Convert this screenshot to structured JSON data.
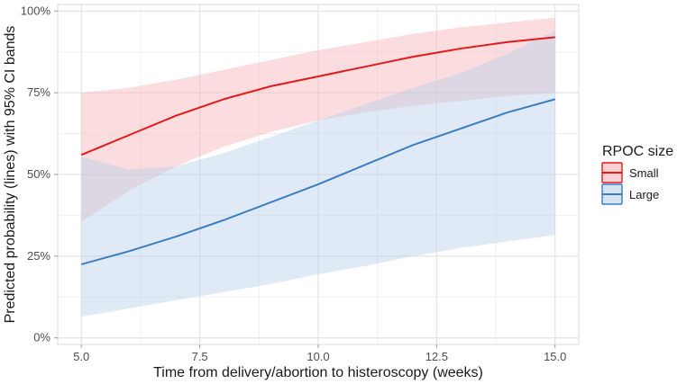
{
  "chart_data": {
    "type": "line",
    "title": "",
    "xlabel": "Time from delivery/abortion to histeroscopy (weeks)",
    "ylabel": "Predicted probability (lines) with 95% CI bands",
    "xlim": [
      4.5,
      15.5
    ],
    "ylim": [
      -0.02,
      1.02
    ],
    "x_ticks": [
      5.0,
      7.5,
      10.0,
      12.5,
      15.0
    ],
    "x_tick_labels": [
      "5.0",
      "7.5",
      "10.0",
      "12.5",
      "15.0"
    ],
    "y_ticks": [
      0,
      0.25,
      0.5,
      0.75,
      1.0
    ],
    "y_tick_labels": [
      "0%",
      "25%",
      "50%",
      "75%",
      "100%"
    ],
    "grid": true,
    "legend": {
      "title": "RPOC size",
      "position": "right"
    },
    "x": [
      5,
      6,
      7,
      8,
      9,
      10,
      11,
      12,
      13,
      14,
      15
    ],
    "series": [
      {
        "name": "Small",
        "color": "#e31a1c",
        "band_color": "#f8b3b8",
        "values": [
          0.56,
          0.62,
          0.68,
          0.73,
          0.77,
          0.8,
          0.83,
          0.86,
          0.885,
          0.905,
          0.92
        ],
        "lower": [
          0.355,
          0.45,
          0.525,
          0.585,
          0.63,
          0.665,
          0.69,
          0.71,
          0.725,
          0.74,
          0.75
        ],
        "upper": [
          0.75,
          0.765,
          0.79,
          0.82,
          0.85,
          0.88,
          0.905,
          0.93,
          0.95,
          0.965,
          0.98
        ]
      },
      {
        "name": "Large",
        "color": "#3a7fc1",
        "band_color": "#b9d1ea",
        "values": [
          0.225,
          0.265,
          0.31,
          0.36,
          0.415,
          0.47,
          0.53,
          0.59,
          0.64,
          0.69,
          0.73
        ],
        "lower": [
          0.065,
          0.09,
          0.115,
          0.14,
          0.165,
          0.195,
          0.22,
          0.25,
          0.275,
          0.295,
          0.315
        ],
        "upper": [
          0.555,
          0.515,
          0.525,
          0.565,
          0.615,
          0.665,
          0.715,
          0.765,
          0.81,
          0.87,
          0.94
        ]
      }
    ]
  }
}
